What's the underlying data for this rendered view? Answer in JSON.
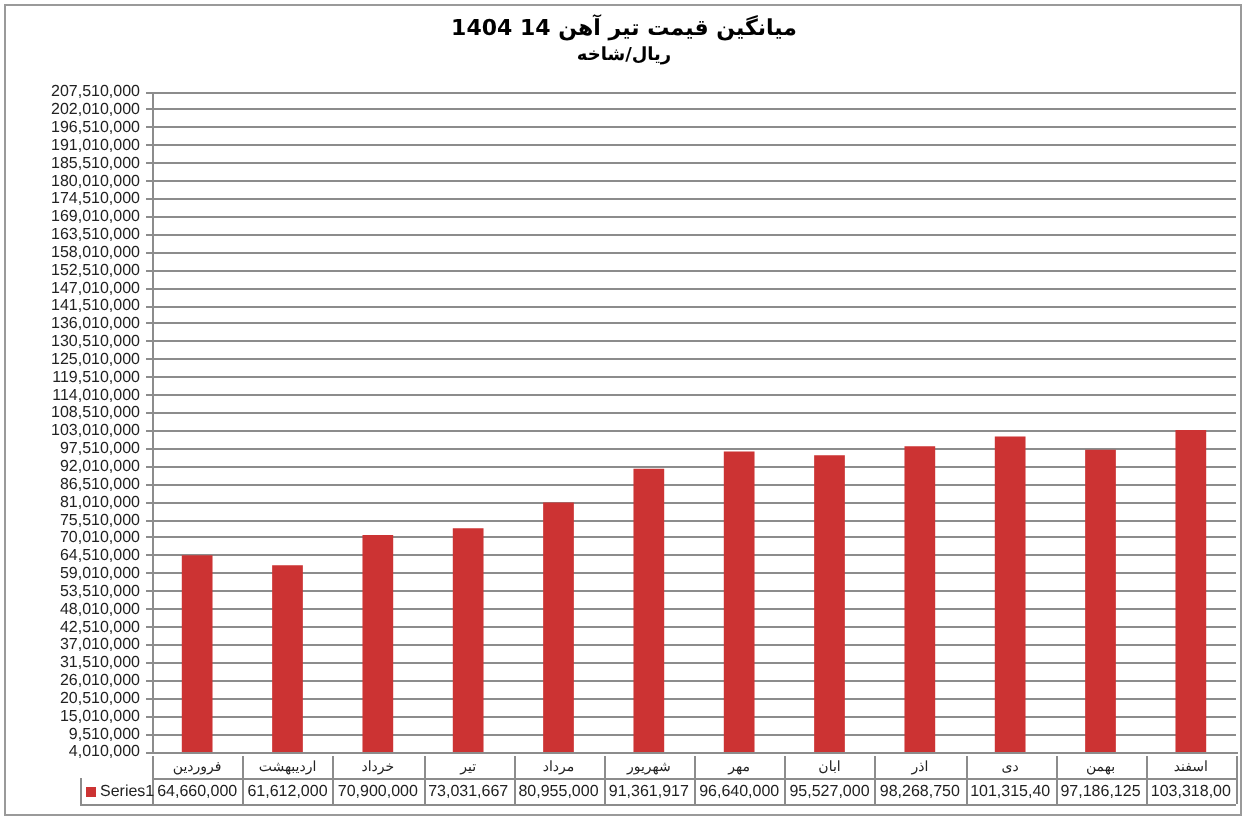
{
  "chart_data": {
    "type": "bar",
    "title": "میانگین قیمت تیر آهن 14 1404",
    "subtitle": "ریال/شاخه",
    "categories": [
      "فروردین",
      "اردیبهشت",
      "خرداد",
      "تیر",
      "مرداد",
      "شهریور",
      "مهر",
      "ابان",
      "اذر",
      "دی",
      "بهمن",
      "اسفند"
    ],
    "series": [
      {
        "name": "Series1",
        "color": "#cc3333",
        "values": [
          64660000,
          61612000,
          70900000,
          73031667,
          80955000,
          91361917,
          96640000,
          95527000,
          98268750,
          101315400,
          97186125,
          103318000
        ],
        "value_labels": [
          "64,660,000",
          "61,612,000",
          "70,900,000",
          "73,031,667",
          "80,955,000",
          "91,361,917",
          "96,640,000",
          "95,527,000",
          "98,268,750",
          "101,315,40",
          "97,186,125",
          "103,318,00"
        ]
      }
    ],
    "ylim": [
      4010000,
      207510000
    ],
    "yticks": [
      {
        "value": 4010000,
        "label": "4,010,000"
      },
      {
        "value": 9510000,
        "label": "9,510,000"
      },
      {
        "value": 15010000,
        "label": "15,010,000"
      },
      {
        "value": 20510000,
        "label": "20,510,000"
      },
      {
        "value": 26010000,
        "label": "26,010,000"
      },
      {
        "value": 31510000,
        "label": "31,510,000"
      },
      {
        "value": 37010000,
        "label": "37,010,000"
      },
      {
        "value": 42510000,
        "label": "42,510,000"
      },
      {
        "value": 48010000,
        "label": "48,010,000"
      },
      {
        "value": 53510000,
        "label": "53,510,000"
      },
      {
        "value": 59010000,
        "label": "59,010,000"
      },
      {
        "value": 64510000,
        "label": "64,510,000"
      },
      {
        "value": 70010000,
        "label": "70,010,000"
      },
      {
        "value": 75510000,
        "label": "75,510,000"
      },
      {
        "value": 81010000,
        "label": "81,010,000"
      },
      {
        "value": 86510000,
        "label": "86,510,000"
      },
      {
        "value": 92010000,
        "label": "92,010,000"
      },
      {
        "value": 97510000,
        "label": "97,510,000"
      },
      {
        "value": 103010000,
        "label": "103,010,000"
      },
      {
        "value": 108510000,
        "label": "108,510,000"
      },
      {
        "value": 114010000,
        "label": "114,010,000"
      },
      {
        "value": 119510000,
        "label": "119,510,000"
      },
      {
        "value": 125010000,
        "label": "125,010,000"
      },
      {
        "value": 130510000,
        "label": "130,510,000"
      },
      {
        "value": 136010000,
        "label": "136,010,000"
      },
      {
        "value": 141510000,
        "label": "141,510,000"
      },
      {
        "value": 147010000,
        "label": "147,010,000"
      },
      {
        "value": 152510000,
        "label": "152,510,000"
      },
      {
        "value": 158010000,
        "label": "158,010,000"
      },
      {
        "value": 163510000,
        "label": "163,510,000"
      },
      {
        "value": 169010000,
        "label": "169,010,000"
      },
      {
        "value": 174510000,
        "label": "174,510,000"
      },
      {
        "value": 180010000,
        "label": "180,010,000"
      },
      {
        "value": 185510000,
        "label": "185,510,000"
      },
      {
        "value": 191010000,
        "label": "191,010,000"
      },
      {
        "value": 196510000,
        "label": "196,510,000"
      },
      {
        "value": 202010000,
        "label": "202,010,000"
      },
      {
        "value": 207510000,
        "label": "207,510,000"
      }
    ],
    "grid": "y",
    "legend": "bottom left"
  }
}
